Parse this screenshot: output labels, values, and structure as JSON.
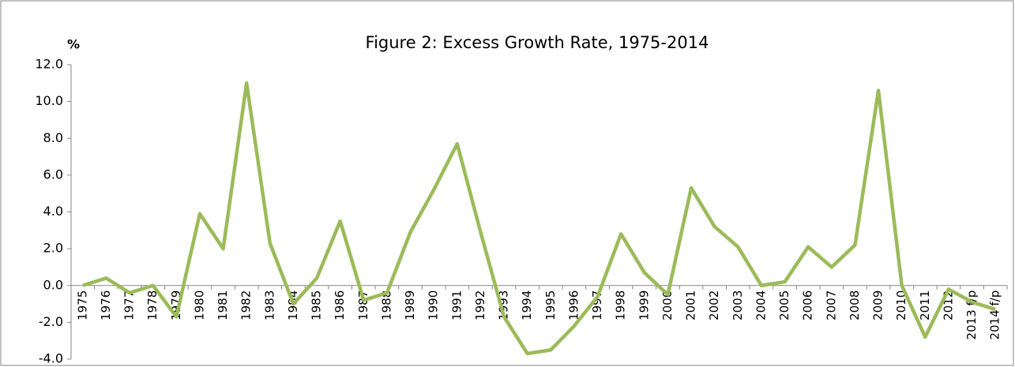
{
  "chart_data": {
    "type": "line",
    "title": "Figure 2: Excess Growth Rate, 1975-2014",
    "y_label": "%",
    "categories": [
      "1975",
      "1976",
      "1977",
      "1978",
      "1979",
      "1980",
      "1981",
      "1982",
      "1983",
      "1984",
      "1985",
      "1986",
      "1987",
      "1988",
      "1989",
      "1990",
      "1991",
      "1992",
      "1993",
      "1994",
      "1995",
      "1996",
      "1997",
      "1998",
      "1999",
      "2000",
      "2001",
      "2002",
      "2003",
      "2004",
      "2005",
      "2006",
      "2007",
      "2008",
      "2009",
      "2010",
      "2011",
      "2012",
      "2013 f/p",
      "2014 f/p"
    ],
    "values": [
      0.0,
      0.4,
      -0.4,
      0.0,
      -1.7,
      3.9,
      2.0,
      11.0,
      2.3,
      -1.0,
      0.4,
      3.5,
      -0.8,
      -0.4,
      2.9,
      5.2,
      7.7,
      2.9,
      -1.7,
      -3.7,
      -3.5,
      -2.2,
      -0.6,
      2.8,
      0.7,
      -0.5,
      5.3,
      3.2,
      2.1,
      0.0,
      0.2,
      2.1,
      1.0,
      2.2,
      10.6,
      0.0,
      -2.8,
      -0.2,
      -0.9,
      -1.3
    ],
    "color": "#9bbb59",
    "ylim": [
      -4,
      12
    ],
    "yticks": [
      {
        "value": -4,
        "label": "-4.0"
      },
      {
        "value": -2,
        "label": "-2.0"
      },
      {
        "value": 0,
        "label": "0.0"
      },
      {
        "value": 2,
        "label": "2.0"
      },
      {
        "value": 4,
        "label": "4.0"
      },
      {
        "value": 6,
        "label": "6.0"
      },
      {
        "value": 8,
        "label": "8.0"
      },
      {
        "value": 10,
        "label": "10.0"
      },
      {
        "value": 12,
        "label": "12.0"
      }
    ],
    "grid": false
  }
}
